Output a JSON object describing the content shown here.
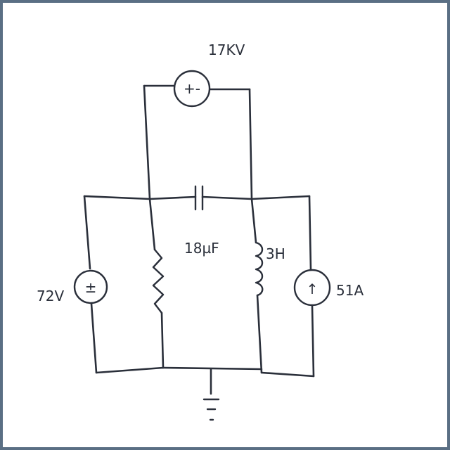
{
  "labels": {
    "ac_source": "17KV",
    "capacitor": "18µF",
    "inductor": "3H",
    "voltage_source": "72V",
    "current_source": "51A"
  },
  "symbols": {
    "ac_source_sign": "+-",
    "dc_source_sign": "±",
    "current_arrow": "↑"
  },
  "colors": {
    "ink": "#2a2f3a",
    "frame": "#5a6f84",
    "background": "#ffffff"
  }
}
